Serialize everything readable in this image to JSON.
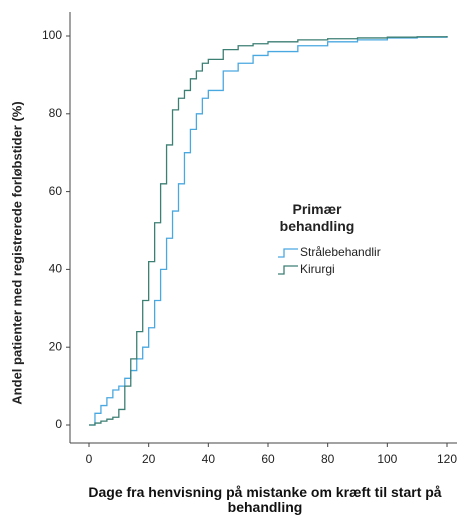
{
  "chart_data": {
    "type": "line",
    "step": true,
    "x_label": "Dage fra henvisning på mistanke om kræft til start på behandling",
    "y_label": "Andel patienter med registrerede forløbstider (%)",
    "legend_title": "Primær behandling",
    "x": [
      0,
      2,
      4,
      6,
      8,
      10,
      12,
      14,
      16,
      18,
      20,
      22,
      24,
      26,
      28,
      30,
      32,
      34,
      36,
      38,
      40,
      45,
      50,
      55,
      60,
      70,
      80,
      90,
      100,
      110,
      120
    ],
    "series": [
      {
        "name": "Strålebehandlir",
        "color": "#4aa8e0",
        "values": [
          0,
          3,
          5,
          7,
          9,
          10,
          12,
          14,
          17,
          20,
          25,
          32,
          40,
          48,
          55,
          62,
          70,
          76,
          80,
          84,
          86,
          91,
          93,
          95,
          96,
          97.5,
          98.5,
          99,
          99.5,
          99.7,
          100
        ]
      },
      {
        "name": "Kirurgi",
        "color": "#3c7f73",
        "values": [
          0,
          0.5,
          1,
          1.5,
          2,
          4,
          10,
          17,
          24,
          32,
          42,
          52,
          62,
          72,
          81,
          84,
          86,
          89,
          91,
          93,
          94,
          96.5,
          97.5,
          98,
          98.5,
          99,
          99.3,
          99.5,
          99.7,
          99.8,
          100
        ]
      }
    ],
    "xlim": [
      0,
      120
    ],
    "xticks": [
      0,
      20,
      40,
      60,
      80,
      100,
      120
    ],
    "ylim": [
      0,
      100
    ],
    "yticks": [
      0,
      20,
      40,
      60,
      80,
      100
    ]
  }
}
